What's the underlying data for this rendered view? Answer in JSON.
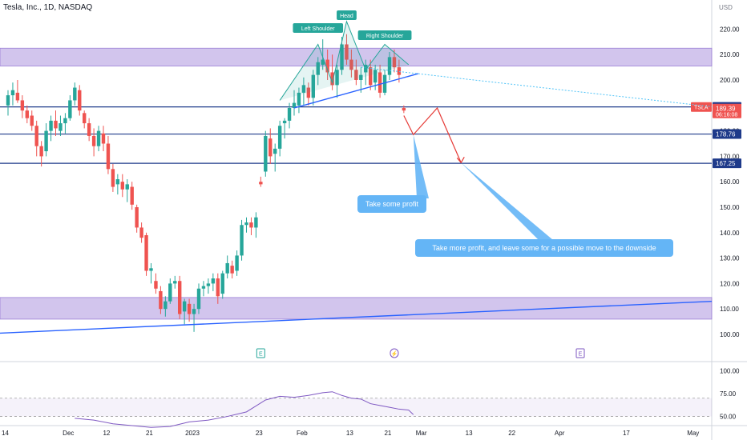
{
  "header": {
    "title": "Tesla, Inc., 1D, NASDAQ",
    "currency": "USD"
  },
  "colors": {
    "up": "#26a69a",
    "down": "#ef5350",
    "zone": "#9c7fd6",
    "hline": "#1e3a8a",
    "trend": "#2962ff",
    "pattern": "#26a69a",
    "arrow": "#e53935",
    "callout": "#64b5f6",
    "rsi": "#7e57c2"
  },
  "chart_data": {
    "type": "candlestick",
    "symbol": "TSLA",
    "ylim": [
      94,
      230
    ],
    "yticks": [
      100,
      110,
      120,
      130,
      140,
      150,
      160,
      170,
      180,
      190,
      200,
      210,
      220
    ],
    "xticks": [
      {
        "label": "14",
        "day": 0
      },
      {
        "label": "Dec",
        "day": 14
      },
      {
        "label": "12",
        "day": 22
      },
      {
        "label": "21",
        "day": 31
      },
      {
        "label": "2023",
        "day": 40
      },
      {
        "label": "23",
        "day": 54
      },
      {
        "label": "Feb",
        "day": 63
      },
      {
        "label": "13",
        "day": 73
      },
      {
        "label": "21",
        "day": 81
      },
      {
        "label": "Mar",
        "day": 88
      },
      {
        "label": "13",
        "day": 98
      },
      {
        "label": "22",
        "day": 107
      },
      {
        "label": "Apr",
        "day": 117
      },
      {
        "label": "17",
        "day": 131
      },
      {
        "label": "May",
        "day": 145
      }
    ],
    "candles": [
      {
        "d": 0,
        "o": 190,
        "h": 196,
        "l": 186,
        "c": 194
      },
      {
        "d": 1,
        "o": 194,
        "h": 199,
        "l": 190,
        "c": 196
      },
      {
        "d": 2,
        "o": 195,
        "h": 200,
        "l": 191,
        "c": 192
      },
      {
        "d": 3,
        "o": 192,
        "h": 194,
        "l": 185,
        "c": 188
      },
      {
        "d": 4,
        "o": 188,
        "h": 190,
        "l": 183,
        "c": 185
      },
      {
        "d": 5,
        "o": 186,
        "h": 188,
        "l": 180,
        "c": 182
      },
      {
        "d": 6,
        "o": 182,
        "h": 184,
        "l": 170,
        "c": 174
      },
      {
        "d": 7,
        "o": 174,
        "h": 176,
        "l": 166,
        "c": 170
      },
      {
        "d": 8,
        "o": 172,
        "h": 183,
        "l": 170,
        "c": 180
      },
      {
        "d": 9,
        "o": 180,
        "h": 186,
        "l": 176,
        "c": 184
      },
      {
        "d": 10,
        "o": 184,
        "h": 188,
        "l": 178,
        "c": 181
      },
      {
        "d": 11,
        "o": 180,
        "h": 186,
        "l": 178,
        "c": 183
      },
      {
        "d": 12,
        "o": 183,
        "h": 187,
        "l": 179,
        "c": 185
      },
      {
        "d": 13,
        "o": 185,
        "h": 194,
        "l": 184,
        "c": 192
      },
      {
        "d": 14,
        "o": 192,
        "h": 199,
        "l": 190,
        "c": 197
      },
      {
        "d": 15,
        "o": 196,
        "h": 198,
        "l": 186,
        "c": 188
      },
      {
        "d": 16,
        "o": 187,
        "h": 188,
        "l": 181,
        "c": 183
      },
      {
        "d": 17,
        "o": 183,
        "h": 185,
        "l": 176,
        "c": 178
      },
      {
        "d": 18,
        "o": 178,
        "h": 181,
        "l": 170,
        "c": 174
      },
      {
        "d": 19,
        "o": 174,
        "h": 182,
        "l": 172,
        "c": 180
      },
      {
        "d": 20,
        "o": 179,
        "h": 182,
        "l": 172,
        "c": 175
      },
      {
        "d": 21,
        "o": 175,
        "h": 178,
        "l": 163,
        "c": 165
      },
      {
        "d": 22,
        "o": 165,
        "h": 167,
        "l": 156,
        "c": 158
      },
      {
        "d": 23,
        "o": 159,
        "h": 163,
        "l": 155,
        "c": 161
      },
      {
        "d": 24,
        "o": 160,
        "h": 163,
        "l": 154,
        "c": 157
      },
      {
        "d": 25,
        "o": 157,
        "h": 161,
        "l": 152,
        "c": 159
      },
      {
        "d": 26,
        "o": 158,
        "h": 160,
        "l": 149,
        "c": 151
      },
      {
        "d": 27,
        "o": 150,
        "h": 151,
        "l": 140,
        "c": 142
      },
      {
        "d": 28,
        "o": 142,
        "h": 144,
        "l": 136,
        "c": 138
      },
      {
        "d": 29,
        "o": 139,
        "h": 140,
        "l": 123,
        "c": 125
      },
      {
        "d": 30,
        "o": 125,
        "h": 128,
        "l": 120,
        "c": 126
      },
      {
        "d": 31,
        "o": 121,
        "h": 124,
        "l": 116,
        "c": 118
      },
      {
        "d": 32,
        "o": 117,
        "h": 119,
        "l": 108,
        "c": 110
      },
      {
        "d": 33,
        "o": 110,
        "h": 115,
        "l": 107,
        "c": 113
      },
      {
        "d": 34,
        "o": 113,
        "h": 122,
        "l": 112,
        "c": 120
      },
      {
        "d": 35,
        "o": 120,
        "h": 123,
        "l": 118,
        "c": 121
      },
      {
        "d": 36,
        "o": 121,
        "h": 123,
        "l": 106,
        "c": 108
      },
      {
        "d": 37,
        "o": 109,
        "h": 114,
        "l": 104,
        "c": 113
      },
      {
        "d": 38,
        "o": 112,
        "h": 114,
        "l": 105,
        "c": 108
      },
      {
        "d": 39,
        "o": 108,
        "h": 112,
        "l": 101,
        "c": 110
      },
      {
        "d": 40,
        "o": 110,
        "h": 120,
        "l": 108,
        "c": 118
      },
      {
        "d": 41,
        "o": 118,
        "h": 121,
        "l": 115,
        "c": 119
      },
      {
        "d": 42,
        "o": 119,
        "h": 122,
        "l": 116,
        "c": 120
      },
      {
        "d": 43,
        "o": 120,
        "h": 124,
        "l": 117,
        "c": 122
      },
      {
        "d": 44,
        "o": 122,
        "h": 124,
        "l": 112,
        "c": 115
      },
      {
        "d": 45,
        "o": 116,
        "h": 125,
        "l": 114,
        "c": 124
      },
      {
        "d": 46,
        "o": 124,
        "h": 131,
        "l": 122,
        "c": 128
      },
      {
        "d": 47,
        "o": 127,
        "h": 129,
        "l": 122,
        "c": 124
      },
      {
        "d": 48,
        "o": 125,
        "h": 133,
        "l": 123,
        "c": 131
      },
      {
        "d": 49,
        "o": 131,
        "h": 145,
        "l": 129,
        "c": 143
      },
      {
        "d": 50,
        "o": 143,
        "h": 146,
        "l": 140,
        "c": 144
      },
      {
        "d": 51,
        "o": 144,
        "h": 146,
        "l": 139,
        "c": 142
      },
      {
        "d": 52,
        "o": 142,
        "h": 148,
        "l": 138,
        "c": 146
      },
      {
        "d": 53,
        "o": 160,
        "h": 162,
        "l": 158,
        "c": 159
      },
      {
        "d": 54,
        "o": 164,
        "h": 180,
        "l": 162,
        "c": 178
      },
      {
        "d": 55,
        "o": 177,
        "h": 181,
        "l": 167,
        "c": 170
      },
      {
        "d": 56,
        "o": 171,
        "h": 175,
        "l": 164,
        "c": 173
      },
      {
        "d": 57,
        "o": 173,
        "h": 184,
        "l": 170,
        "c": 182
      },
      {
        "d": 58,
        "o": 183,
        "h": 185,
        "l": 177,
        "c": 184
      },
      {
        "d": 59,
        "o": 184,
        "h": 191,
        "l": 181,
        "c": 189
      },
      {
        "d": 60,
        "o": 189,
        "h": 196,
        "l": 186,
        "c": 191
      },
      {
        "d": 61,
        "o": 190,
        "h": 197,
        "l": 187,
        "c": 195
      },
      {
        "d": 62,
        "o": 195,
        "h": 201,
        "l": 190,
        "c": 198
      },
      {
        "d": 63,
        "o": 197,
        "h": 199,
        "l": 190,
        "c": 193
      },
      {
        "d": 64,
        "o": 193,
        "h": 204,
        "l": 190,
        "c": 202
      },
      {
        "d": 65,
        "o": 202,
        "h": 209,
        "l": 198,
        "c": 207
      },
      {
        "d": 66,
        "o": 206,
        "h": 216,
        "l": 204,
        "c": 208
      },
      {
        "d": 67,
        "o": 208,
        "h": 212,
        "l": 200,
        "c": 203
      },
      {
        "d": 68,
        "o": 203,
        "h": 210,
        "l": 196,
        "c": 198
      },
      {
        "d": 69,
        "o": 198,
        "h": 206,
        "l": 193,
        "c": 204
      },
      {
        "d": 70,
        "o": 204,
        "h": 217,
        "l": 202,
        "c": 214
      },
      {
        "d": 71,
        "o": 214,
        "h": 218,
        "l": 206,
        "c": 208
      },
      {
        "d": 72,
        "o": 208,
        "h": 212,
        "l": 201,
        "c": 204
      },
      {
        "d": 73,
        "o": 204,
        "h": 208,
        "l": 198,
        "c": 200
      },
      {
        "d": 74,
        "o": 200,
        "h": 205,
        "l": 195,
        "c": 202
      },
      {
        "d": 75,
        "o": 203,
        "h": 208,
        "l": 198,
        "c": 206
      },
      {
        "d": 76,
        "o": 205,
        "h": 208,
        "l": 196,
        "c": 198
      },
      {
        "d": 77,
        "o": 199,
        "h": 206,
        "l": 196,
        "c": 204
      },
      {
        "d": 78,
        "o": 203,
        "h": 206,
        "l": 193,
        "c": 195
      },
      {
        "d": 79,
        "o": 195,
        "h": 204,
        "l": 194,
        "c": 202
      },
      {
        "d": 80,
        "o": 202,
        "h": 211,
        "l": 200,
        "c": 209
      },
      {
        "d": 81,
        "o": 209,
        "h": 212,
        "l": 203,
        "c": 205
      },
      {
        "d": 82,
        "o": 205,
        "h": 208,
        "l": 199,
        "c": 202
      },
      {
        "d": 83,
        "o": 189,
        "h": 190,
        "l": 187,
        "c": 188
      }
    ],
    "levels": [
      {
        "value": 189.43,
        "label": "189.43",
        "style": "box"
      },
      {
        "value": 178.76,
        "label": "178.76",
        "style": "box"
      },
      {
        "value": 167.25,
        "label": "167.25",
        "style": "box"
      }
    ],
    "last_price": {
      "symbol": "TSLA",
      "value": 189.39,
      "label": "189.39",
      "countdown": "06:16:08"
    },
    "zones": [
      {
        "top": 212.5,
        "bottom": 205.5
      },
      {
        "top": 114.5,
        "bottom": 106
      }
    ],
    "pattern_labels": [
      "Left Shoulder",
      "Head",
      "Right Shoulder"
    ],
    "callouts": [
      "Take some profit",
      "Take more profit, and leave some for a possible move to the downside"
    ],
    "event_icons": [
      "E",
      "⚡",
      "E"
    ],
    "rsi": {
      "yticks": [
        100,
        75,
        50
      ],
      "yticklabels": [
        "100.00",
        "75.00",
        "50.00"
      ],
      "band": [
        70,
        50
      ],
      "ylim": [
        40,
        110
      ],
      "values": [
        {
          "d": 14,
          "v": 48
        },
        {
          "d": 18,
          "v": 46
        },
        {
          "d": 22,
          "v": 42
        },
        {
          "d": 26,
          "v": 40
        },
        {
          "d": 30,
          "v": 38
        },
        {
          "d": 34,
          "v": 39
        },
        {
          "d": 38,
          "v": 44
        },
        {
          "d": 42,
          "v": 46
        },
        {
          "d": 46,
          "v": 50
        },
        {
          "d": 50,
          "v": 55
        },
        {
          "d": 54,
          "v": 68
        },
        {
          "d": 57,
          "v": 72
        },
        {
          "d": 60,
          "v": 71
        },
        {
          "d": 63,
          "v": 73
        },
        {
          "d": 66,
          "v": 76
        },
        {
          "d": 68,
          "v": 77
        },
        {
          "d": 70,
          "v": 73
        },
        {
          "d": 72,
          "v": 70
        },
        {
          "d": 74,
          "v": 69
        },
        {
          "d": 76,
          "v": 64
        },
        {
          "d": 78,
          "v": 62
        },
        {
          "d": 80,
          "v": 60
        },
        {
          "d": 82,
          "v": 58
        },
        {
          "d": 84,
          "v": 57
        },
        {
          "d": 85,
          "v": 52
        }
      ]
    }
  }
}
